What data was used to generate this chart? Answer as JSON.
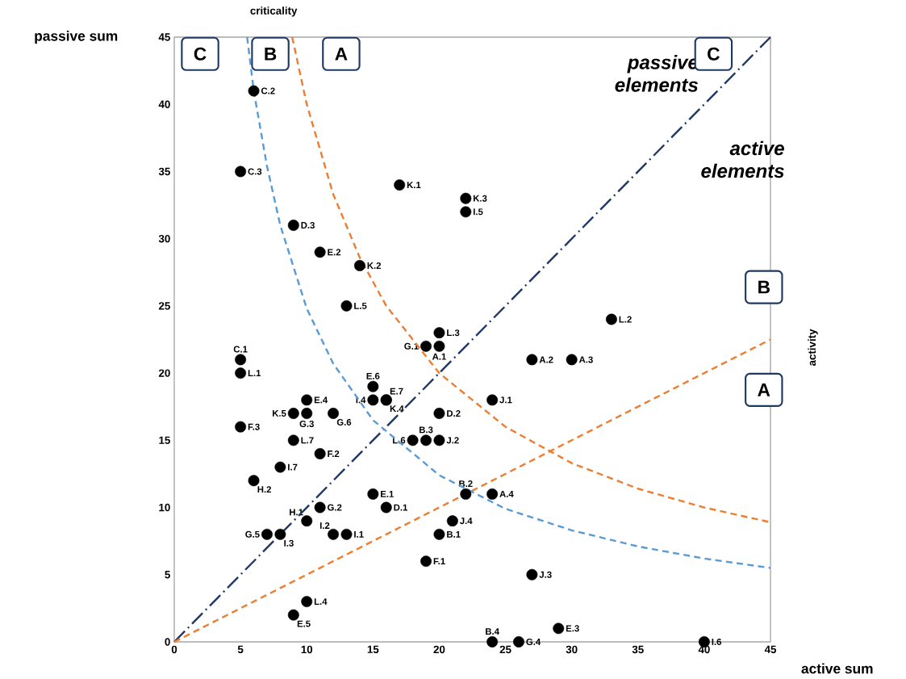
{
  "chart_data": {
    "type": "scatter",
    "xlabel": "active sum",
    "ylabel": "passive sum",
    "xlim": [
      0,
      45
    ],
    "ylim": [
      0,
      45
    ],
    "xticks": [
      0,
      5,
      10,
      15,
      20,
      25,
      30,
      35,
      40,
      45
    ],
    "yticks": [
      0,
      5,
      10,
      15,
      20,
      25,
      30,
      35,
      40,
      45
    ],
    "series": [
      {
        "type": "scatter",
        "color": "#000000",
        "marker": "circle",
        "x": [
          6,
          5,
          9,
          11,
          14,
          17,
          22,
          22,
          13,
          20,
          19,
          20,
          5,
          5,
          15,
          15,
          16,
          16,
          10,
          9,
          10,
          12,
          20,
          5,
          9,
          18,
          19,
          20,
          11,
          8,
          6,
          15,
          16,
          11,
          10,
          7,
          8,
          12,
          13,
          22,
          24,
          21,
          20,
          19,
          27,
          10,
          9,
          24,
          26,
          29,
          40,
          33,
          27,
          30,
          24
        ],
        "values": [
          41,
          35,
          31,
          29,
          28,
          34,
          33,
          32,
          25,
          23,
          22,
          22,
          21,
          20,
          19,
          18,
          18,
          18,
          18,
          17,
          17,
          17,
          17,
          16,
          15,
          15,
          15,
          15,
          14,
          13,
          12,
          11,
          10,
          10,
          9,
          8,
          8,
          8,
          8,
          11,
          11,
          9,
          8,
          6,
          5,
          3,
          2,
          0,
          0,
          1,
          0,
          24,
          21,
          21,
          18
        ],
        "value_labels": [
          "C.2",
          "C.3",
          "D.3",
          "E.2",
          "K.2",
          "K.1",
          "K.3",
          "I.5",
          "L.5",
          "L.3",
          "G.1",
          "A.1",
          "C.1",
          "L.1",
          "E.6",
          "I.4",
          "E.7",
          "K.4",
          "E.4",
          "K.5",
          "G.3",
          "G.6",
          "D.2",
          "F.3",
          "L.7",
          "L.6",
          "B.3",
          "J.2",
          "F.2",
          "I.7",
          "H.2",
          "E.1",
          "D.1",
          "G.2",
          "H.1",
          "G.5",
          "I.3",
          "I.2",
          "I.1",
          "B.2",
          "A.4",
          "J.4",
          "B.1",
          "F.1",
          "J.3",
          "L.4",
          "E.5",
          "B.4",
          "G.4",
          "E.3",
          "I.6",
          "L.2",
          "A.2",
          "A.3",
          "J.1"
        ]
      },
      {
        "type": "line",
        "color": "#1f3864",
        "line_style": "dashdot",
        "marker": "none",
        "x": [
          0,
          45
        ],
        "values": [
          0,
          45
        ]
      },
      {
        "type": "line",
        "color": "#ed7d31",
        "line_style": "dashed",
        "marker": "none",
        "x": [
          0,
          45
        ],
        "values": [
          0,
          22.5
        ]
      },
      {
        "type": "line",
        "color": "#5b9bd5",
        "line_style": "dashed",
        "marker": "none",
        "x": [
          5.5,
          6,
          7,
          8,
          10,
          12,
          15,
          20,
          25,
          30,
          35,
          40,
          45
        ],
        "values": [
          45,
          41,
          35.4,
          31,
          24.8,
          20.7,
          16.5,
          12.4,
          9.9,
          8.3,
          7.1,
          6.2,
          5.5
        ]
      },
      {
        "type": "line",
        "color": "#ed7d31",
        "line_style": "dashed",
        "marker": "none",
        "x": [
          8.9,
          10,
          12,
          14,
          16,
          20,
          25,
          30,
          35,
          40,
          45
        ],
        "values": [
          45,
          40,
          33.3,
          28.6,
          25,
          20,
          16,
          13.3,
          11.4,
          10,
          8.9
        ]
      }
    ],
    "annotations": [
      "criticality",
      "C",
      "B",
      "A",
      "passive elements",
      "C",
      "active elements",
      "B",
      "A",
      "activity"
    ]
  }
}
